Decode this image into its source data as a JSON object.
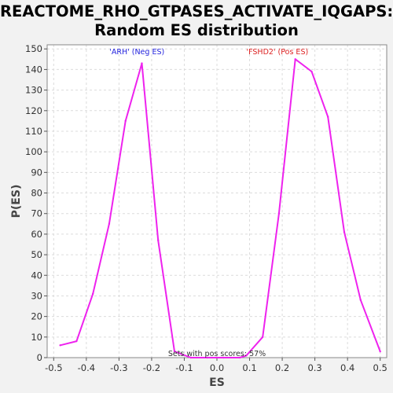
{
  "title_lines": [
    "REACTOME_RHO_GTPASES_ACTIVATE_IQGAPS:",
    "Random ES distribution"
  ],
  "chart_data": {
    "type": "line",
    "xlabel": "ES",
    "ylabel": "P(ES)",
    "xlim": [
      -0.52,
      0.52
    ],
    "ylim": [
      0,
      152
    ],
    "xticks": [
      -0.5,
      -0.4,
      -0.3,
      -0.2,
      -0.1,
      0.0,
      0.1,
      0.2,
      0.3,
      0.4,
      0.5
    ],
    "xtick_labels": [
      "-0.5",
      "-0.4",
      "-0.3",
      "-0.2",
      "-0.1",
      "0.0",
      "0.1",
      "0.2",
      "0.3",
      "0.4",
      "0.5"
    ],
    "yticks": [
      0,
      10,
      20,
      30,
      40,
      50,
      60,
      70,
      80,
      90,
      100,
      110,
      120,
      130,
      140,
      150
    ],
    "grid": true,
    "series": [
      {
        "color": "#ee22ee",
        "x": [
          -0.48,
          -0.43,
          -0.38,
          -0.33,
          -0.28,
          -0.23,
          -0.18,
          -0.13,
          -0.08,
          -0.03,
          0.02,
          0.07,
          0.09,
          0.14,
          0.19,
          0.24,
          0.29,
          0.34,
          0.39,
          0.44,
          0.5
        ],
        "y": [
          6,
          8,
          31,
          65,
          115,
          143,
          57,
          3,
          0,
          0,
          0,
          0,
          1,
          10,
          70,
          145,
          139,
          117,
          61,
          28,
          3
        ]
      }
    ],
    "annotations": [
      {
        "text": "'ARH' (Neg ES)",
        "x": -0.245,
        "y": 147.5,
        "color": "#2222dd"
      },
      {
        "text": "'FSHD2' (Pos ES)",
        "x": 0.185,
        "y": 147.5,
        "color": "#dd2222"
      },
      {
        "text": "Sets with pos scores: 57%",
        "x": 0.0,
        "y": 0.8,
        "color": "#333333"
      }
    ]
  }
}
